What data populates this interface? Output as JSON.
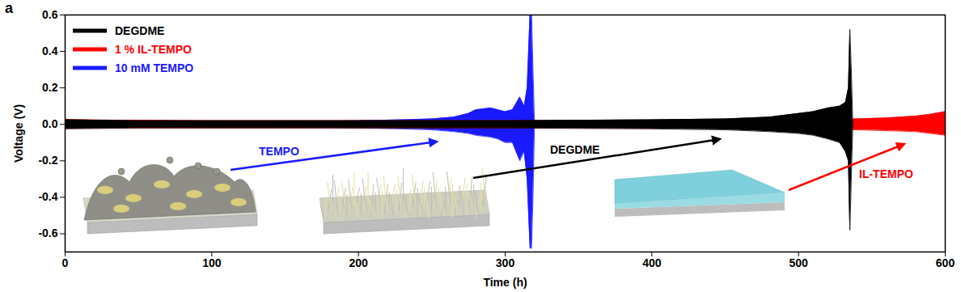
{
  "chart_data": {
    "type": "area",
    "title": "a",
    "x_label": "Time (h)",
    "y_label": "Voltage (V)",
    "xlim": [
      0,
      600
    ],
    "xticks": [
      0,
      100,
      200,
      300,
      400,
      500,
      600
    ],
    "ylim": [
      -0.7,
      0.6
    ],
    "yticks": [
      -0.6,
      -0.4,
      -0.2,
      {
        "value": 0,
        "label": "0.0"
      },
      0.2,
      0.4,
      0.6
    ],
    "grid": false,
    "legend": "top-left",
    "series": [
      {
        "name": "DEGDME",
        "color": "#000000",
        "x": [
          0,
          50,
          100,
          200,
          300,
          400,
          450,
          480,
          500,
          510,
          520,
          528,
          532,
          534,
          535,
          536,
          537
        ],
        "upper": [
          0.025,
          0.02,
          0.02,
          0.02,
          0.02,
          0.025,
          0.03,
          0.04,
          0.06,
          0.07,
          0.09,
          0.1,
          0.12,
          0.2,
          0.52,
          0.3,
          0
        ],
        "lower": [
          -0.025,
          -0.02,
          -0.02,
          -0.02,
          -0.02,
          -0.025,
          -0.03,
          -0.04,
          -0.05,
          -0.06,
          -0.08,
          -0.1,
          -0.15,
          -0.2,
          -0.58,
          -0.3,
          0
        ]
      },
      {
        "name": "1 % IL-TEMPO",
        "color": "#ff0000",
        "x": [
          0,
          2,
          50,
          100,
          150,
          200,
          250,
          300,
          350,
          400,
          450,
          480,
          500,
          520,
          540,
          560,
          580,
          590,
          600
        ],
        "upper": [
          0.03,
          0.025,
          0.022,
          0.02,
          0.02,
          0.02,
          0.02,
          0.02,
          0.02,
          0.02,
          0.02,
          0.022,
          0.025,
          0.028,
          0.03,
          0.035,
          0.045,
          0.055,
          0.07
        ],
        "lower": [
          -0.02,
          -0.02,
          -0.02,
          -0.02,
          -0.02,
          -0.02,
          -0.02,
          -0.02,
          -0.02,
          -0.02,
          -0.02,
          -0.022,
          -0.025,
          -0.028,
          -0.03,
          -0.035,
          -0.04,
          -0.05,
          -0.06
        ]
      },
      {
        "name": "10 mM TEMPO",
        "color": "#1a1aff",
        "x": [
          0,
          50,
          100,
          150,
          200,
          230,
          250,
          265,
          275,
          280,
          290,
          295,
          300,
          305,
          310,
          313,
          315,
          317,
          318,
          319,
          320
        ],
        "upper": [
          0.02,
          0.015,
          0.015,
          0.015,
          0.02,
          0.025,
          0.03,
          0.04,
          0.06,
          0.08,
          0.09,
          0.08,
          0.07,
          0.08,
          0.15,
          0.1,
          0.2,
          0.62,
          0.62,
          0.3,
          0
        ],
        "lower": [
          -0.02,
          -0.015,
          -0.015,
          -0.015,
          -0.02,
          -0.025,
          -0.03,
          -0.04,
          -0.05,
          -0.06,
          -0.07,
          -0.08,
          -0.1,
          -0.1,
          -0.2,
          -0.15,
          -0.3,
          -0.68,
          -0.68,
          -0.4,
          0
        ]
      }
    ],
    "annotations": [
      {
        "text": "TEMPO",
        "color": "#1a1aff"
      },
      {
        "text": "DEGDME",
        "color": "#000000"
      },
      {
        "text": "IL-TEMPO",
        "color": "#ff0000"
      }
    ]
  }
}
